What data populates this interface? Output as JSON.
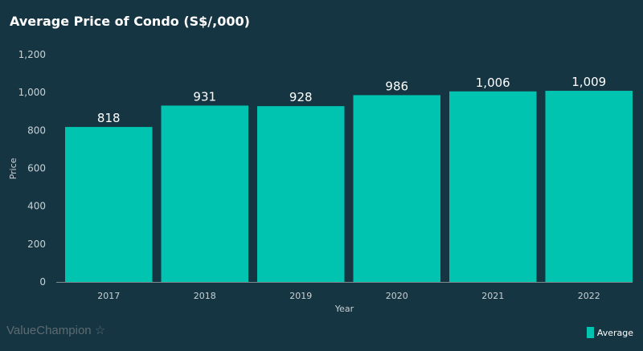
{
  "chart_data": {
    "type": "bar",
    "title": "Average Price of Condo (S$/,000)",
    "xlabel": "Year",
    "ylabel": "Price",
    "categories": [
      "2017",
      "2018",
      "2019",
      "2020",
      "2021",
      "2022"
    ],
    "series": [
      {
        "name": "Average",
        "values": [
          818,
          931,
          928,
          986,
          1006,
          1009
        ]
      }
    ],
    "data_labels": [
      "818",
      "931",
      "928",
      "986",
      "1,006",
      "1,009"
    ],
    "ylim": [
      0,
      1200
    ],
    "yticks": [
      "0",
      "200",
      "400",
      "600",
      "800",
      "1,000",
      "1,200"
    ],
    "grid": false,
    "legend": "bottom-right",
    "color": "#00c4b0"
  },
  "brand": "ValueChampion"
}
